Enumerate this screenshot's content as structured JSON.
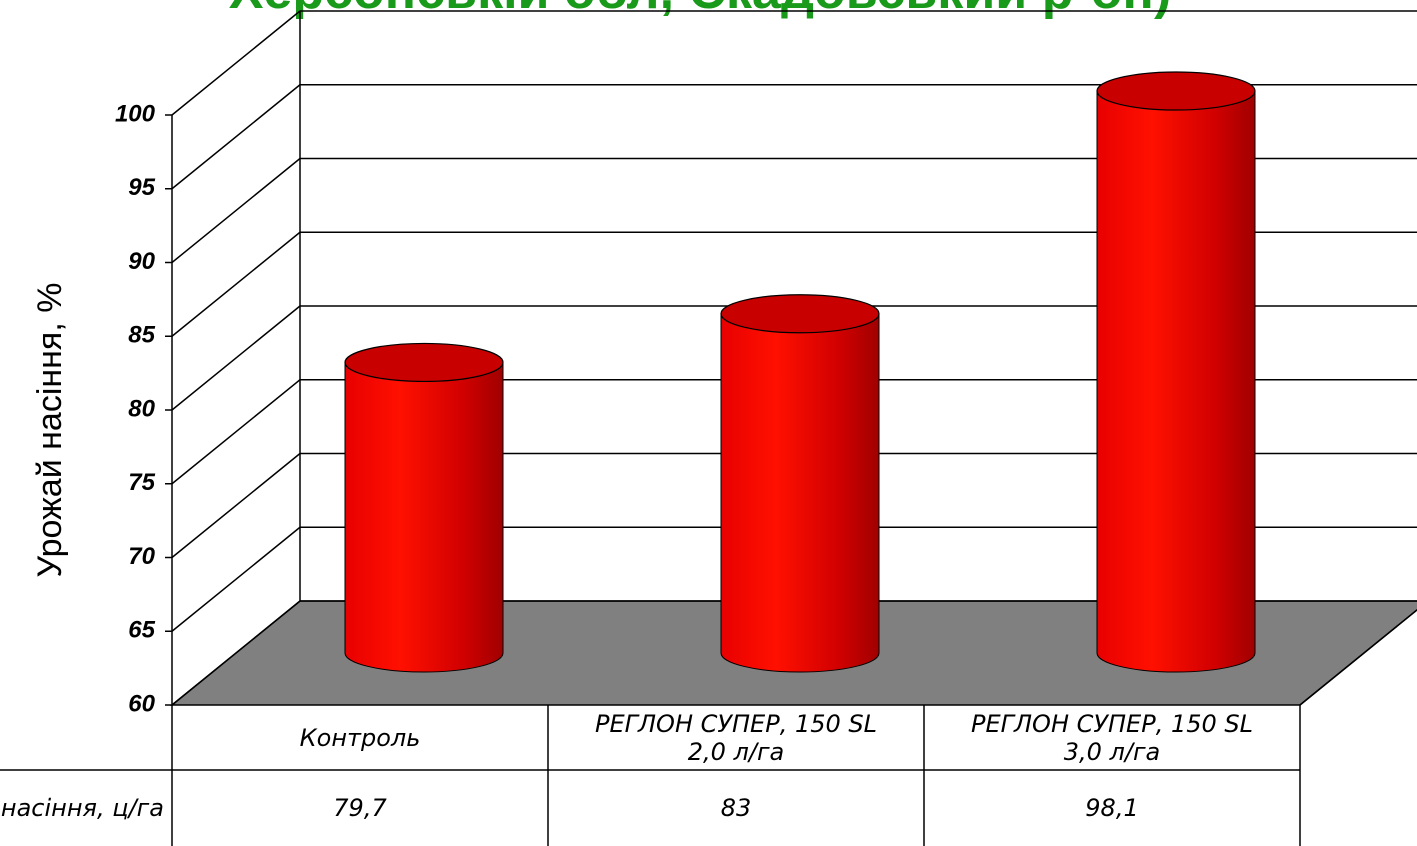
{
  "chart_data": {
    "type": "bar3d",
    "title": "Херсонській обл, Скадовський р-он)",
    "y_label": "Урожай насіння, %",
    "categories": [
      "Контроль",
      "РЕГЛОН СУПЕР, 150 SL\n2,0 л/га",
      "РЕГЛОН СУПЕР, 150 SL\n3,0 л/га"
    ],
    "table_row_label": "Урожай насіння, ц/га",
    "values": [
      79.7,
      83,
      98.1
    ],
    "value_labels": [
      "79,7",
      "83",
      "98,1"
    ],
    "color": "#e00000",
    "floor_color": "#808080",
    "ylim": [
      60,
      100
    ],
    "yticks": [
      60,
      65,
      70,
      75,
      80,
      85,
      90,
      95,
      100
    ],
    "grid": true
  }
}
